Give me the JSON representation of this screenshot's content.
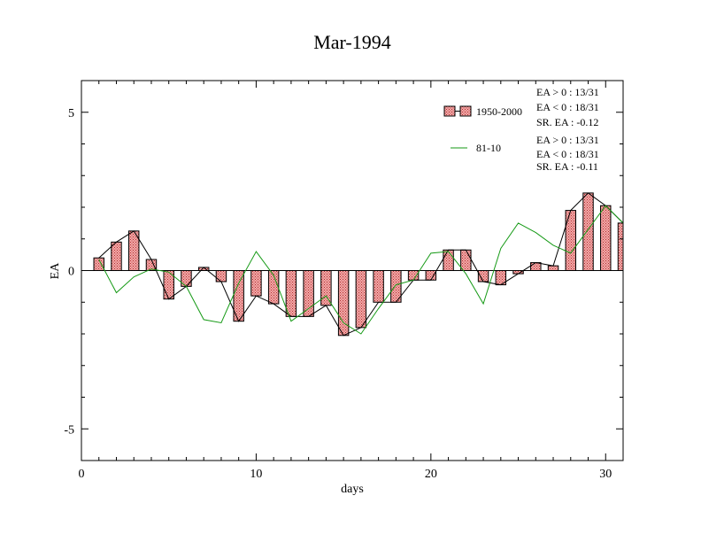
{
  "chart_data": {
    "type": "bar",
    "title": "Mar-1994",
    "xlabel": "days",
    "ylabel": "EA",
    "xlim": [
      0,
      31
    ],
    "ylim": [
      -6,
      6
    ],
    "xticks": [
      0,
      10,
      20,
      30
    ],
    "yticks": [
      -5,
      0,
      5
    ],
    "grid": false,
    "legend_position": "top-right",
    "x": [
      1,
      2,
      3,
      4,
      5,
      6,
      7,
      8,
      9,
      10,
      11,
      12,
      13,
      14,
      15,
      16,
      17,
      18,
      19,
      20,
      21,
      22,
      23,
      24,
      25,
      26,
      27,
      28,
      29,
      30,
      31
    ],
    "series": [
      {
        "name": "1950-2000",
        "kind": "bar",
        "color": "#e97a7a",
        "values": [
          0.4,
          0.9,
          1.25,
          0.35,
          -0.9,
          -0.5,
          0.1,
          -0.35,
          -1.6,
          -0.8,
          -1.05,
          -1.45,
          -1.45,
          -1.1,
          -2.05,
          -1.8,
          -1.0,
          -1.0,
          -0.3,
          -0.3,
          0.65,
          0.65,
          -0.35,
          -0.45,
          -0.1,
          0.25,
          0.15,
          1.9,
          2.45,
          2.05,
          1.5
        ],
        "stats": [
          "EA > 0 : 13/31",
          "EA < 0 : 18/31",
          "SR. EA : -0.12"
        ]
      },
      {
        "name": "81-10",
        "kind": "line",
        "color": "#169a16",
        "values": [
          0.35,
          -0.7,
          -0.2,
          0.05,
          -0.05,
          -0.5,
          -1.55,
          -1.65,
          -0.4,
          0.6,
          -0.15,
          -1.6,
          -1.2,
          -0.8,
          -1.65,
          -2.0,
          -1.2,
          -0.45,
          -0.3,
          0.55,
          0.6,
          -0.1,
          -1.05,
          0.7,
          1.5,
          1.2,
          0.8,
          0.55,
          1.3,
          2.05,
          1.5
        ],
        "stats": [
          "EA > 0 : 13/31",
          "EA < 0 : 18/31",
          "SR. EA : -0.11"
        ]
      }
    ]
  }
}
